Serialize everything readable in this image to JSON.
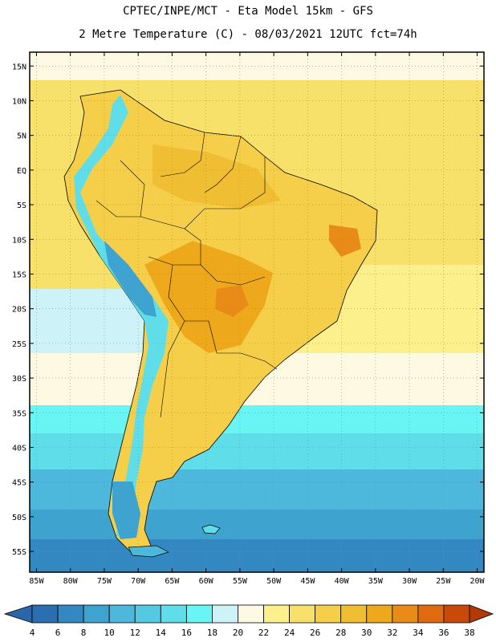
{
  "header": {
    "line1": "CPTEC/INPE/MCT -  Eta Model 15km - GFS",
    "line2": "2 Metre Temperature (C) - 08/03/2021 12UTC fct=74h"
  },
  "map": {
    "lon_range": [
      -86,
      -19
    ],
    "lat_range": [
      -58,
      17
    ],
    "lat_ticks": [
      {
        "v": 15,
        "label": "15N"
      },
      {
        "v": 10,
        "label": "10N"
      },
      {
        "v": 5,
        "label": "5N"
      },
      {
        "v": 0,
        "label": "EQ"
      },
      {
        "v": -5,
        "label": "5S"
      },
      {
        "v": -10,
        "label": "10S"
      },
      {
        "v": -15,
        "label": "15S"
      },
      {
        "v": -20,
        "label": "20S"
      },
      {
        "v": -25,
        "label": "25S"
      },
      {
        "v": -30,
        "label": "30S"
      },
      {
        "v": -35,
        "label": "35S"
      },
      {
        "v": -40,
        "label": "40S"
      },
      {
        "v": -45,
        "label": "45S"
      },
      {
        "v": -50,
        "label": "50S"
      },
      {
        "v": -55,
        "label": "55S"
      }
    ],
    "lon_ticks": [
      {
        "v": -85,
        "label": "85W"
      },
      {
        "v": -80,
        "label": "80W"
      },
      {
        "v": -75,
        "label": "75W"
      },
      {
        "v": -70,
        "label": "70W"
      },
      {
        "v": -65,
        "label": "65W"
      },
      {
        "v": -60,
        "label": "60W"
      },
      {
        "v": -55,
        "label": "55W"
      },
      {
        "v": -50,
        "label": "50W"
      },
      {
        "v": -45,
        "label": "45W"
      },
      {
        "v": -40,
        "label": "40W"
      },
      {
        "v": -35,
        "label": "35W"
      },
      {
        "v": -30,
        "label": "30W"
      },
      {
        "v": -25,
        "label": "25W"
      },
      {
        "v": -20,
        "label": "20W"
      }
    ]
  },
  "colorbar": {
    "labels": [
      "4",
      "6",
      "8",
      "10",
      "12",
      "14",
      "16",
      "18",
      "20",
      "22",
      "24",
      "26",
      "28",
      "30",
      "32",
      "34",
      "36",
      "38"
    ],
    "colors": [
      "#2b6fb0",
      "#3488c2",
      "#3fa3cf",
      "#4db7dc",
      "#55c8e2",
      "#5fdde8",
      "#6af5f5",
      "#cdf3f8",
      "#fdf9e3",
      "#fbf08c",
      "#f8e16a",
      "#f5cf4a",
      "#f0be33",
      "#eda81c",
      "#e88c17",
      "#e06a10",
      "#c94a08"
    ],
    "low_color": "#2a66a8",
    "high_color": "#b13a06"
  }
}
